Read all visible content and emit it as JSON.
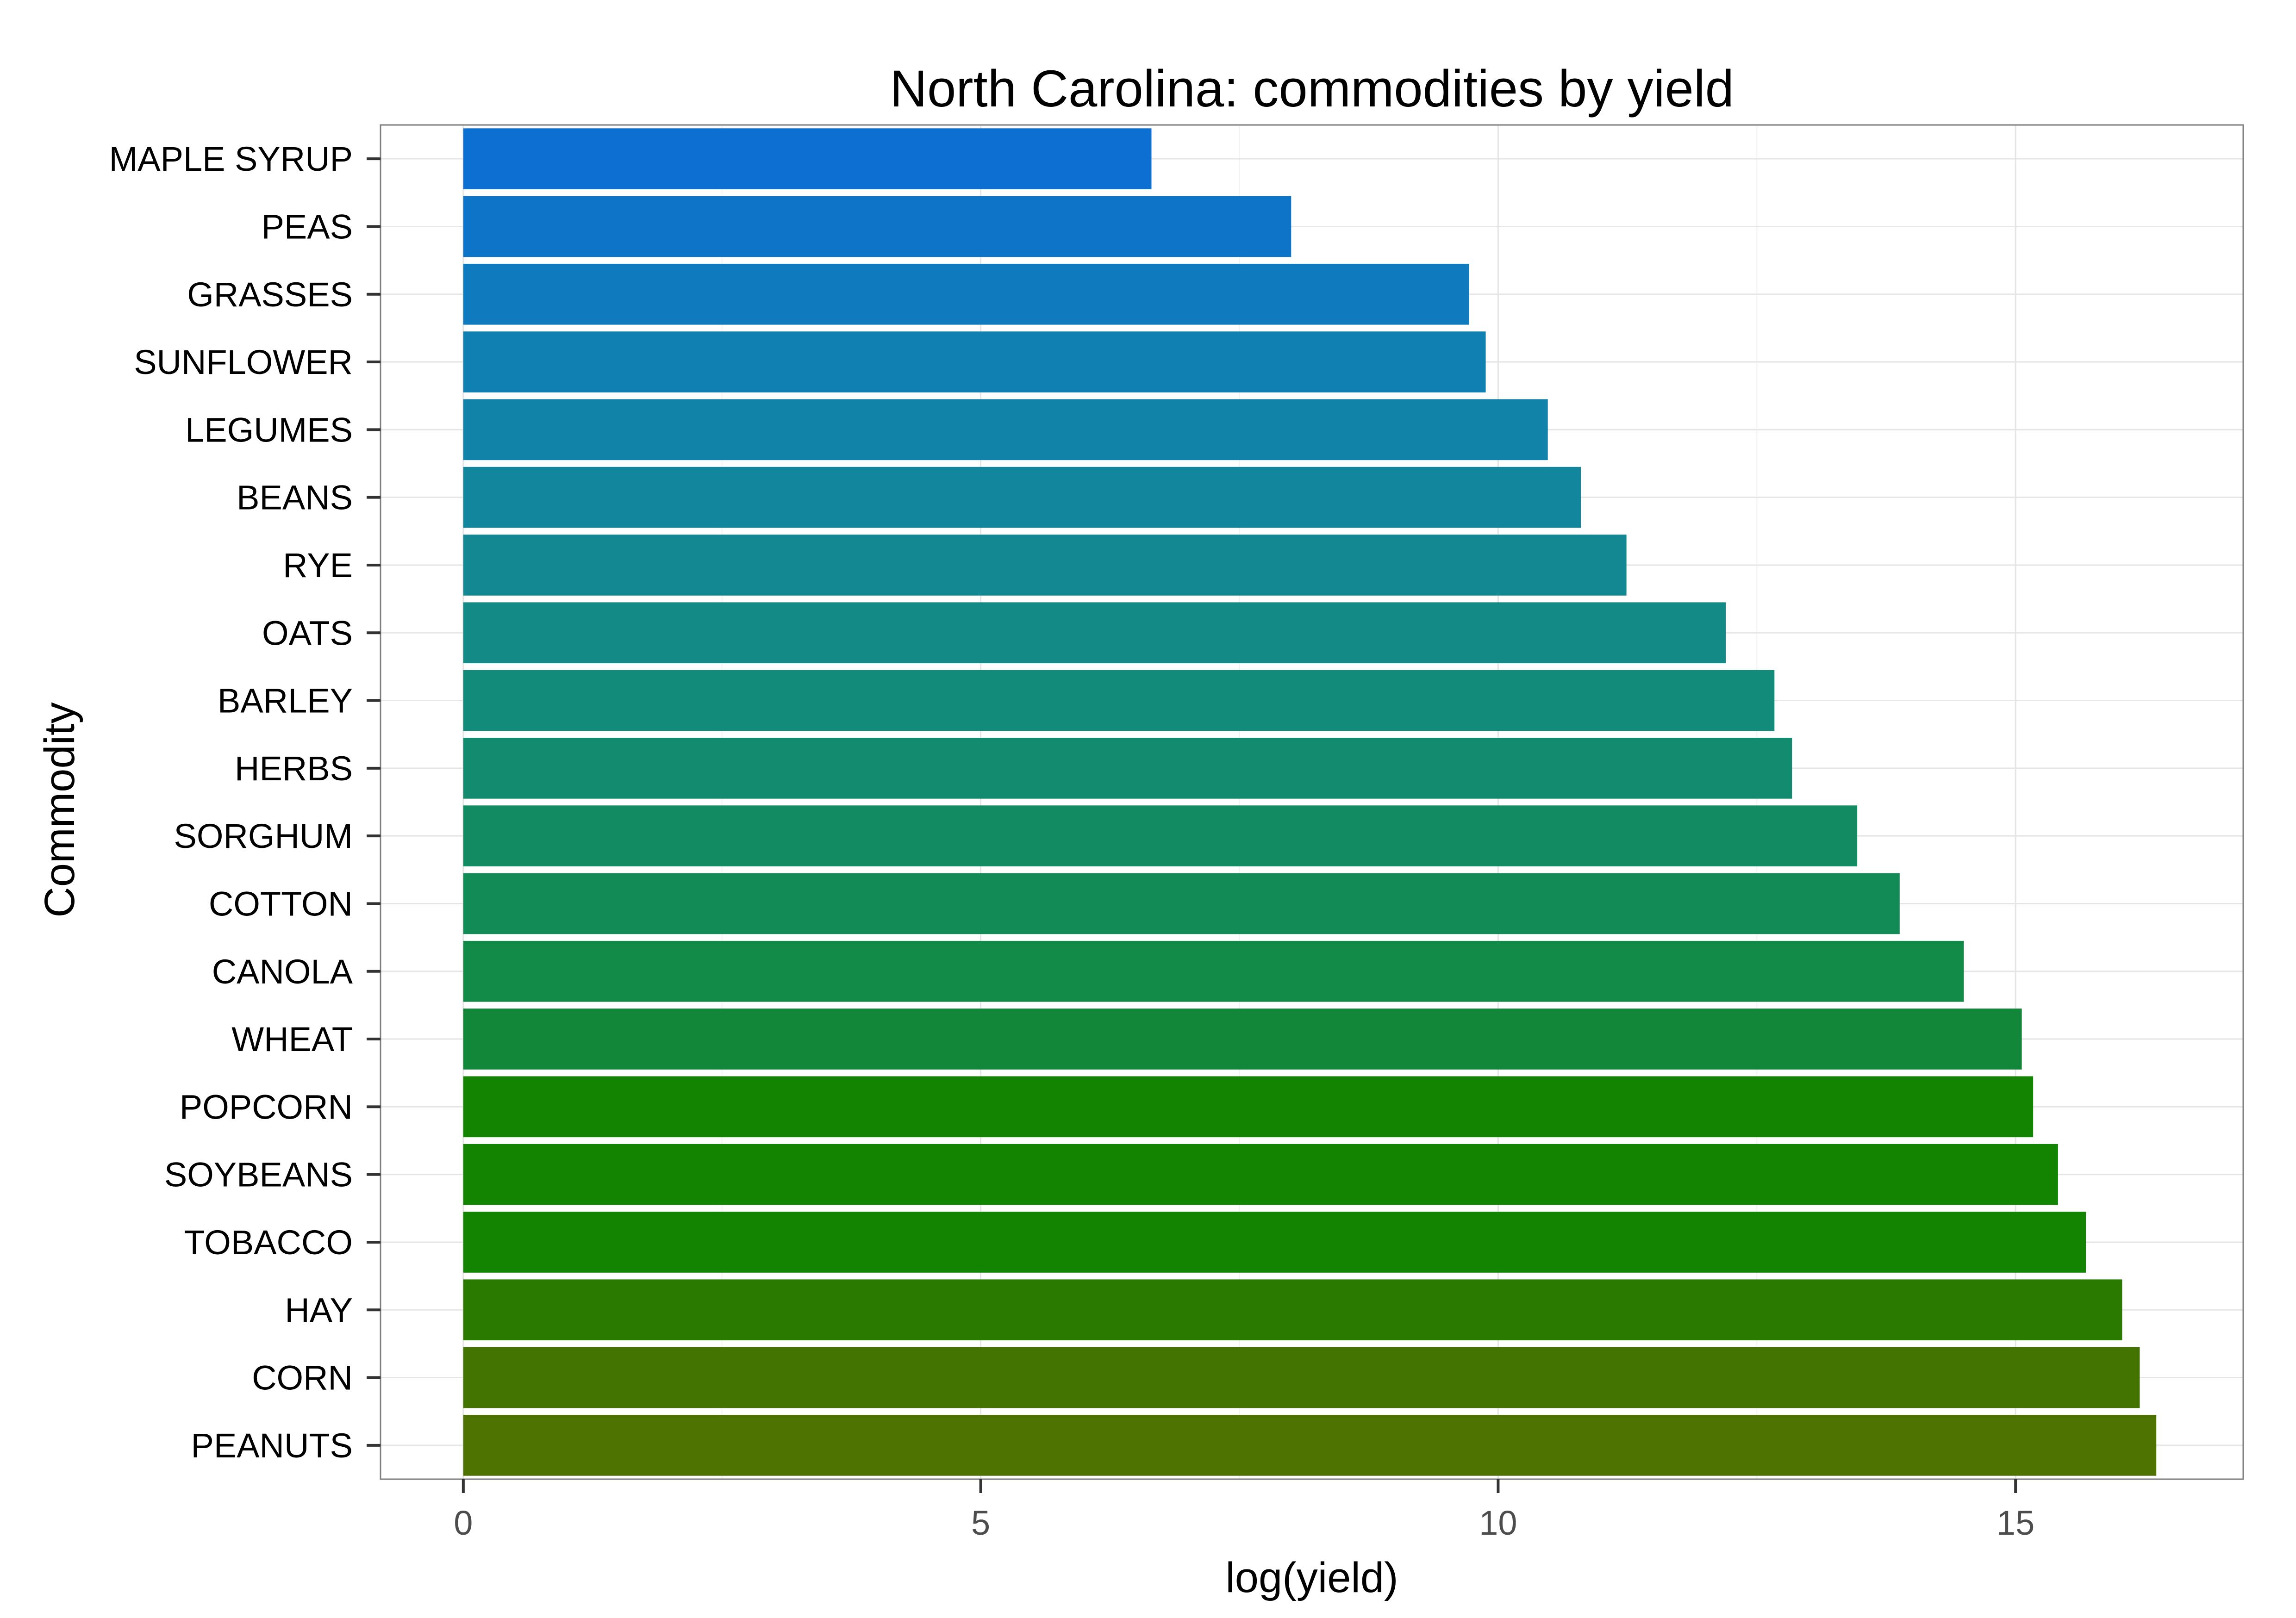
{
  "chart_data": {
    "type": "bar",
    "orientation": "horizontal",
    "title": "North Carolina: commodities by yield",
    "xlabel": "log(yield)",
    "ylabel": "Commodity",
    "xlim": [
      -0.8,
      17.2
    ],
    "xticks": [
      0,
      5,
      10,
      15
    ],
    "grid": true,
    "legend": "none",
    "categories": [
      "MAPLE SYRUP",
      "PEAS",
      "GRASSES",
      "SUNFLOWER",
      "LEGUMES",
      "BEANS",
      "RYE",
      "OATS",
      "BARLEY",
      "HERBS",
      "SORGHUM",
      "COTTON",
      "CANOLA",
      "WHEAT",
      "POPCORN",
      "SOYBEANS",
      "TOBACCO",
      "HAY",
      "CORN",
      "PEANUTS"
    ],
    "values": [
      6.65,
      8.0,
      9.72,
      9.88,
      10.48,
      10.8,
      11.24,
      12.2,
      12.67,
      12.84,
      13.47,
      13.88,
      14.5,
      15.06,
      15.17,
      15.41,
      15.68,
      16.03,
      16.2,
      16.36
    ],
    "colors": [
      "#0c6fd1",
      "#0d74c7",
      "#0f7abd",
      "#107fb2",
      "#1183a8",
      "#12869d",
      "#138892",
      "#138a85",
      "#138b7a",
      "#138b6f",
      "#138b62",
      "#138b56",
      "#138b48",
      "#12873a",
      "#128402",
      "#128402",
      "#128402",
      "#2b7a00",
      "#437300",
      "#4e7300"
    ]
  }
}
